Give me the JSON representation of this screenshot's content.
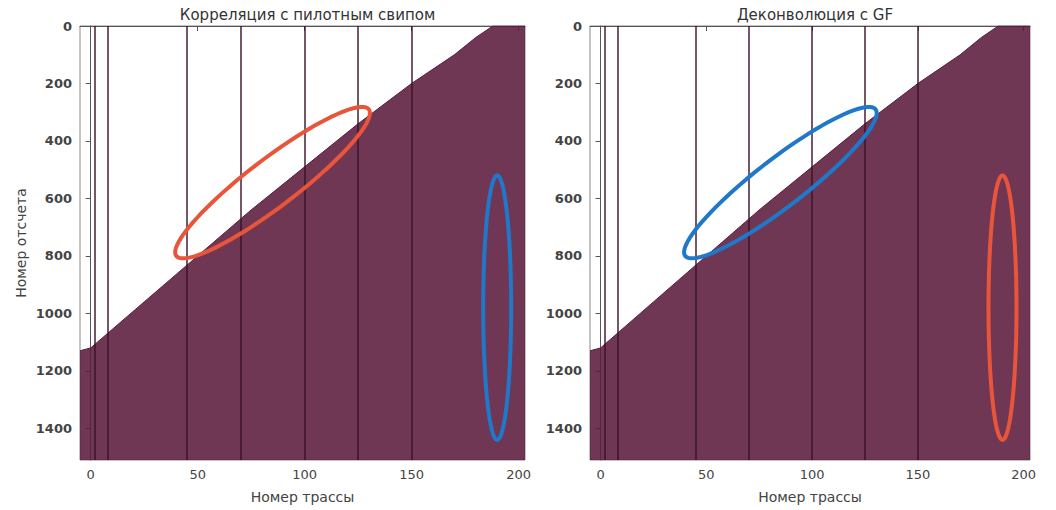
{
  "chart_data": [
    {
      "type": "seismic",
      "title": "Корреляция с пилотным свипом",
      "xlabel": "Номер трассы",
      "ylabel": "Номер отсчета",
      "xlim": [
        -5,
        203
      ],
      "ylim": [
        0,
        1510
      ],
      "xticks": [
        0,
        50,
        100,
        150,
        200
      ],
      "yticks": [
        0,
        200,
        400,
        600,
        800,
        1000,
        1200,
        1400
      ],
      "first_break": {
        "x": [
          -5,
          0,
          25,
          50,
          75,
          100,
          125,
          150,
          170,
          180,
          188,
          203
        ],
        "y": [
          1130,
          1120,
          960,
          800,
          640,
          490,
          340,
          200,
          100,
          40,
          0,
          0
        ],
        "color": "#5b1b3c"
      },
      "noisy_traces": [
        2,
        8,
        45,
        70,
        100,
        125,
        150
      ],
      "ellipses": [
        {
          "color": "#e8553a",
          "from": [
            40,
            800
          ],
          "to": [
            130,
            290
          ]
        },
        {
          "color": "#1f78c8",
          "from": [
            190,
            520
          ],
          "to": [
            190,
            1440
          ]
        }
      ]
    },
    {
      "type": "seismic",
      "title": "Деконволюция с GF",
      "xlabel": "Номер трассы",
      "xlim": [
        -5,
        203
      ],
      "ylim": [
        0,
        1510
      ],
      "xticks": [
        0,
        50,
        100,
        150,
        200
      ],
      "yticks": [
        0,
        200,
        400,
        600,
        800,
        1000,
        1200,
        1400
      ],
      "first_break": {
        "x": [
          -5,
          0,
          25,
          50,
          75,
          100,
          125,
          150,
          170,
          180,
          188,
          203
        ],
        "y": [
          1130,
          1120,
          960,
          800,
          640,
          490,
          340,
          200,
          100,
          40,
          0,
          0
        ],
        "color": "#5b1b3c"
      },
      "noisy_traces": [
        2,
        8,
        45,
        70,
        100,
        125,
        150
      ],
      "ellipses": [
        {
          "color": "#1f78c8",
          "from": [
            40,
            800
          ],
          "to": [
            130,
            290
          ]
        },
        {
          "color": "#e8553a",
          "from": [
            190,
            520
          ],
          "to": [
            190,
            1440
          ]
        }
      ]
    }
  ]
}
